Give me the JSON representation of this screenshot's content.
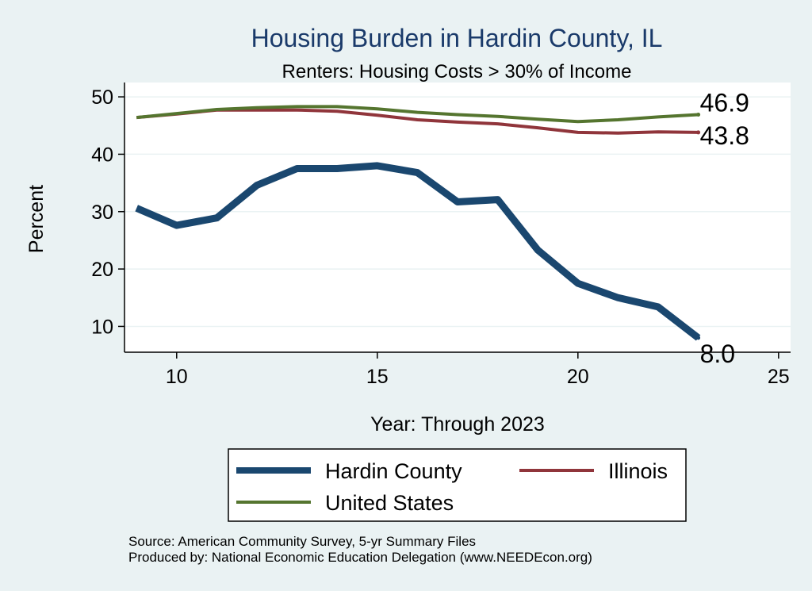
{
  "chart_data": {
    "type": "line",
    "title": "Housing Burden in Hardin County, IL",
    "subtitle": "Renters: Housing Costs > 30% of Income",
    "xlabel": "Year: Through 2023",
    "ylabel": "Percent",
    "xlim": [
      8.7,
      25.3
    ],
    "ylim": [
      5.5,
      52.5
    ],
    "xticks": [
      10,
      15,
      20,
      25
    ],
    "yticks": [
      10,
      20,
      30,
      40,
      50
    ],
    "x": [
      9,
      10,
      11,
      12,
      13,
      14,
      15,
      16,
      17,
      18,
      19,
      20,
      21,
      22,
      23
    ],
    "series": [
      {
        "name": "Hardin County",
        "color": "#1a476f",
        "values": [
          30.6,
          27.6,
          28.9,
          34.6,
          37.5,
          37.5,
          38.0,
          36.8,
          31.7,
          32.1,
          23.3,
          17.5,
          15.0,
          13.4,
          8.0
        ],
        "end_label": "8.0"
      },
      {
        "name": "Illinois",
        "color": "#90353b",
        "values": [
          46.4,
          47.0,
          47.7,
          47.7,
          47.7,
          47.5,
          46.8,
          46.0,
          45.6,
          45.3,
          44.6,
          43.8,
          43.7,
          43.9,
          43.8
        ],
        "end_label": "43.8"
      },
      {
        "name": "United States",
        "color": "#55752f",
        "values": [
          46.4,
          47.1,
          47.8,
          48.1,
          48.3,
          48.3,
          47.9,
          47.3,
          46.9,
          46.6,
          46.1,
          45.7,
          46.0,
          46.5,
          46.9
        ],
        "end_label": "46.9"
      }
    ],
    "legend": {
      "position": "bottom",
      "entries": [
        "Hardin County",
        "Illinois",
        "United States"
      ]
    },
    "grid": true
  },
  "footer": {
    "source": "Source: American Community Survey, 5-yr Summary Files",
    "produced_by": "Produced by: National Economic Education Delegation (www.NEEDEcon.org)"
  }
}
